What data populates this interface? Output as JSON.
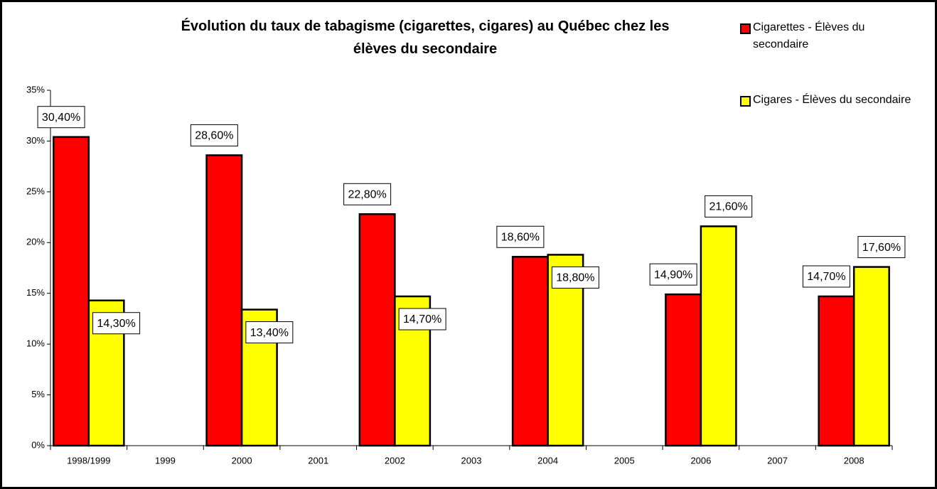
{
  "chart_data": {
    "type": "bar",
    "title": "Évolution du taux de tabagisme (cigarettes, cigares) au Québec chez les élèves du secondaire",
    "categories": [
      "1998/1999",
      "1999",
      "2000",
      "2001",
      "2002",
      "2003",
      "2004",
      "2005",
      "2006",
      "2007",
      "2008"
    ],
    "series": [
      {
        "name": "Cigarettes - Élèves du secondaire",
        "color": "#ff0000",
        "values": [
          30.4,
          null,
          28.6,
          null,
          22.8,
          null,
          18.6,
          null,
          14.9,
          null,
          14.7
        ],
        "value_labels": [
          "30,40%",
          null,
          "28,60%",
          null,
          "22,80%",
          null,
          "18,60%",
          null,
          "14,90%",
          null,
          "14,70%"
        ]
      },
      {
        "name": "Cigares - Élèves du secondaire",
        "color": "#ffff00",
        "values": [
          14.3,
          null,
          13.4,
          null,
          14.7,
          null,
          18.8,
          null,
          21.6,
          null,
          17.6
        ],
        "value_labels": [
          "14,30%",
          null,
          "13,40%",
          null,
          "14,70%",
          null,
          "18,80%",
          null,
          "21,60%",
          null,
          "17,60%"
        ]
      }
    ],
    "ylim": [
      0,
      35
    ],
    "yticks": [
      {
        "value": 0,
        "label": "0%"
      },
      {
        "value": 5,
        "label": "5%"
      },
      {
        "value": 10,
        "label": "10%"
      },
      {
        "value": 15,
        "label": "15%"
      },
      {
        "value": 20,
        "label": "20%"
      },
      {
        "value": 25,
        "label": "25%"
      },
      {
        "value": 30,
        "label": "30%"
      },
      {
        "value": 35,
        "label": "35%"
      }
    ],
    "legend": "top-right"
  }
}
